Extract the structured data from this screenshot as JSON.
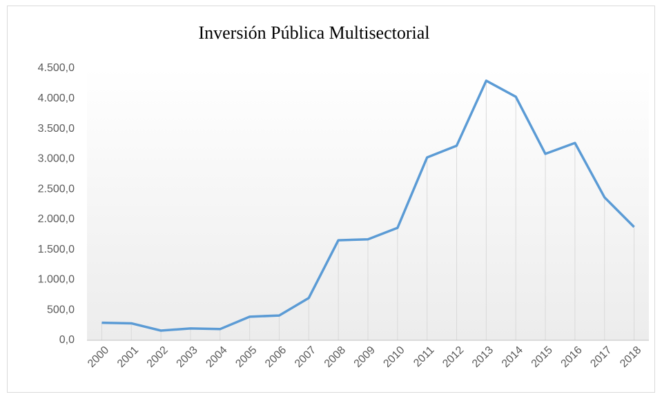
{
  "chart_data": {
    "type": "line",
    "title": "Inversión Pública  Multisectorial",
    "categories": [
      "2000",
      "2001",
      "2002",
      "2003",
      "2004",
      "2005",
      "2006",
      "2007",
      "2008",
      "2009",
      "2010",
      "2011",
      "2012",
      "2013",
      "2014",
      "2015",
      "2016",
      "2017",
      "2018"
    ],
    "values": [
      290,
      280,
      160,
      195,
      185,
      390,
      410,
      700,
      1655,
      1670,
      1860,
      3025,
      3220,
      4295,
      4030,
      3085,
      3265,
      2365,
      1875
    ],
    "color": "#5b9bd5",
    "ylim": [
      0,
      4500
    ],
    "yticks": [
      {
        "value": 0,
        "label": "0,0"
      },
      {
        "value": 500,
        "label": "500,0"
      },
      {
        "value": 1000,
        "label": "1.000,0"
      },
      {
        "value": 1500,
        "label": "1.500,0"
      },
      {
        "value": 2000,
        "label": "2.000,0"
      },
      {
        "value": 2500,
        "label": "2.500,0"
      },
      {
        "value": 3000,
        "label": "3.000,0"
      },
      {
        "value": 3500,
        "label": "3.500,0"
      },
      {
        "value": 4000,
        "label": "4.000,0"
      },
      {
        "value": 4500,
        "label": "4.500,0"
      }
    ],
    "drop_lines": true
  }
}
